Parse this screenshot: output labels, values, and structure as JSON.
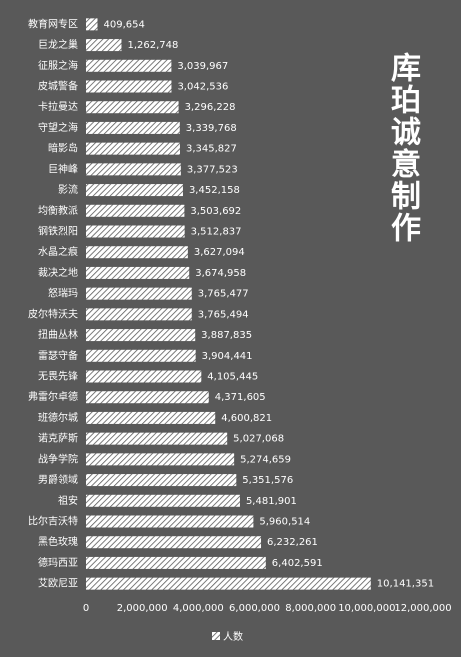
{
  "chart_data": {
    "type": "bar",
    "orientation": "horizontal",
    "annotation": "库珀诚意制作",
    "categories": [
      "教育网专区",
      "巨龙之巢",
      "征服之海",
      "皮城警备",
      "卡拉曼达",
      "守望之海",
      "暗影岛",
      "巨神峰",
      "影流",
      "均衡教派",
      "钢铁烈阳",
      "水晶之痕",
      "裁决之地",
      "怒瑞玛",
      "皮尔特沃夫",
      "扭曲丛林",
      "雷瑟守备",
      "无畏先锋",
      "弗雷尔卓德",
      "班德尔城",
      "诺克萨斯",
      "战争学院",
      "男爵领域",
      "祖安",
      "比尔吉沃特",
      "黑色玫瑰",
      "德玛西亚",
      "艾欧尼亚"
    ],
    "series": [
      {
        "name": "人数",
        "color": "#ffffff",
        "values": [
          409654,
          1262748,
          3039967,
          3042536,
          3296228,
          3339768,
          3345827,
          3377523,
          3452158,
          3503692,
          3512837,
          3627094,
          3674958,
          3765477,
          3765494,
          3887835,
          3904441,
          4105445,
          4371605,
          4600821,
          5027068,
          5274659,
          5351576,
          5481901,
          5960514,
          6232261,
          6402591,
          10141351
        ],
        "value_labels": [
          "409,654",
          "1,262,748",
          "3,039,967",
          "3,042,536",
          "3,296,228",
          "3,339,768",
          "3,345,827",
          "3,377,523",
          "3,452,158",
          "3,503,692",
          "3,512,837",
          "3,627,094",
          "3,674,958",
          "3,765,477",
          "3,765,494",
          "3,887,835",
          "3,904,441",
          "4,105,445",
          "4,371,605",
          "4,600,821",
          "5,027,068",
          "5,274,659",
          "5,351,576",
          "5,481,901",
          "5,960,514",
          "6,232,261",
          "6,402,591",
          "10,141,351"
        ]
      }
    ],
    "xlim": [
      0,
      12000000
    ],
    "xticks": [
      0,
      {
        "value": 2000000,
        "label": "2,000,000"
      },
      {
        "value": 4000000,
        "label": "4,000,000"
      },
      {
        "value": 6000000,
        "label": "6,000,000"
      },
      {
        "value": 8000000,
        "label": "8,000,000"
      },
      {
        "value": 10000000,
        "label": "10,000,000"
      },
      {
        "value": 12000000,
        "label": "12,000,000"
      }
    ],
    "legend": "bottom",
    "hatch": true
  }
}
